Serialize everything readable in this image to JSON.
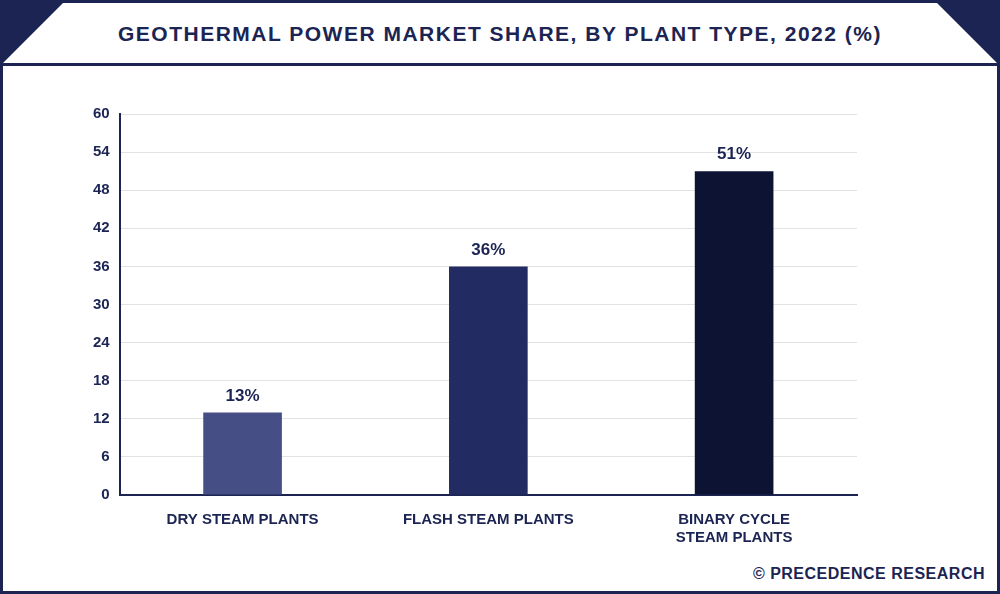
{
  "chart_data": {
    "type": "bar",
    "title": "GEOTHERMAL POWER MARKET SHARE, BY PLANT TYPE, 2022 (%)",
    "categories": [
      "DRY STEAM PLANTS",
      "FLASH STEAM PLANTS",
      "BINARY CYCLE STEAM PLANTS"
    ],
    "values": [
      13,
      36,
      51
    ],
    "value_labels": [
      "13%",
      "36%",
      "51%"
    ],
    "colors": [
      "#464f85",
      "#232b63",
      "#0d1433"
    ],
    "ylim": [
      0,
      60
    ],
    "yticks": [
      0,
      6,
      12,
      18,
      24,
      30,
      36,
      42,
      48,
      54,
      60
    ],
    "grid": true,
    "data_labels": true,
    "source": "© PRECEDENCE RESEARCH"
  }
}
